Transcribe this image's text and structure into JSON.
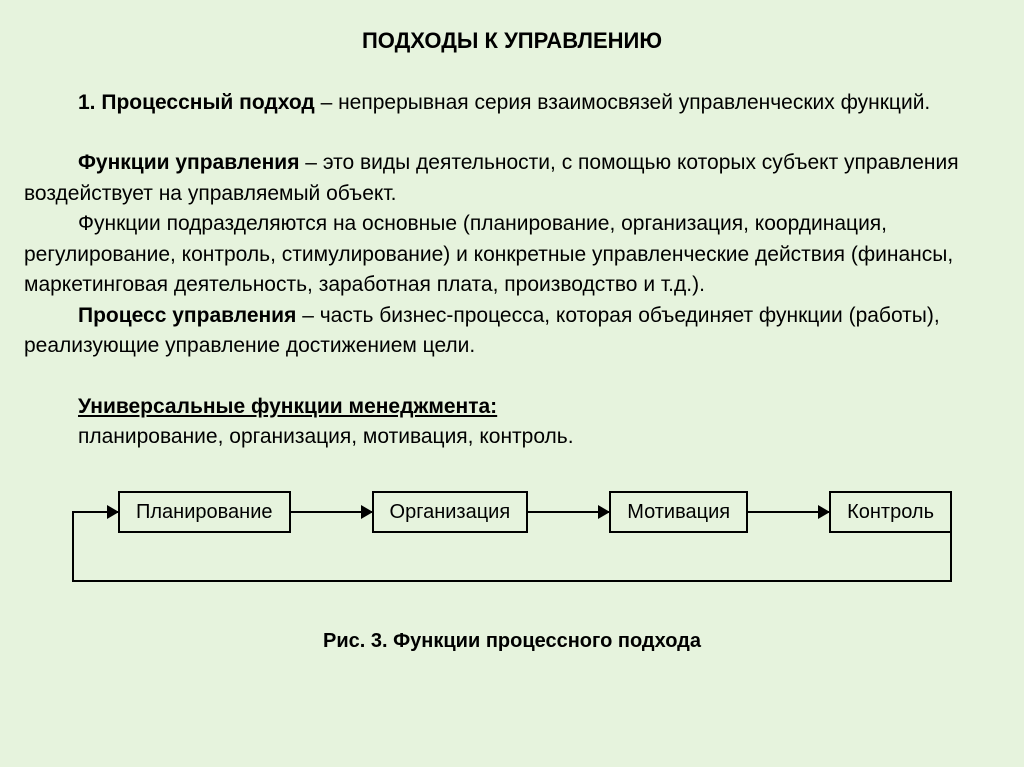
{
  "title": "ПОДХОДЫ К УПРАВЛЕНИЮ",
  "p1": {
    "lead_bold": "1. Процессный подход",
    "lead_rest": " – непрерывная серия взаимосвязей управленческих функций."
  },
  "p2": {
    "lead_bold": "Функции управления",
    "lead_rest": " – это виды деятельности, с помощью которых субъект управления воздействует на управляемый объект."
  },
  "p3": "Функции подразделяются на основные (планирование, организация, координация, регулирование, контроль, стимулирование) и конкретные управленческие действия (финансы, маркетинговая деятельность, заработная плата, производство и т.д.).",
  "p4": {
    "lead_bold": "Процесс управления",
    "lead_rest": " – часть бизнес-процесса, которая объединяет функции (работы), реализующие управление достижением цели."
  },
  "p5": {
    "bold_underline": "Универсальные функции менеджмента:",
    "rest": "планирование, организация, мотивация, контроль."
  },
  "diagram": {
    "type": "flowchart",
    "nodes": [
      "Планирование",
      "Организация",
      "Мотивация",
      "Контроль"
    ],
    "node_border_color": "#000000",
    "node_border_width": 2,
    "node_fill": "#e6f3dd",
    "node_fontsize": 20,
    "arrow_color": "#000000",
    "arrow_width": 2,
    "arrowhead_size": 12,
    "feedback_loop": true,
    "background_color": "#e6f3dd"
  },
  "caption": "Рис. 3. Функции процессного подхода",
  "styling": {
    "page_bg": "#e6f3dd",
    "text_color": "#000000",
    "title_fontsize": 22,
    "body_fontsize": 21,
    "font_family": "Arial"
  }
}
